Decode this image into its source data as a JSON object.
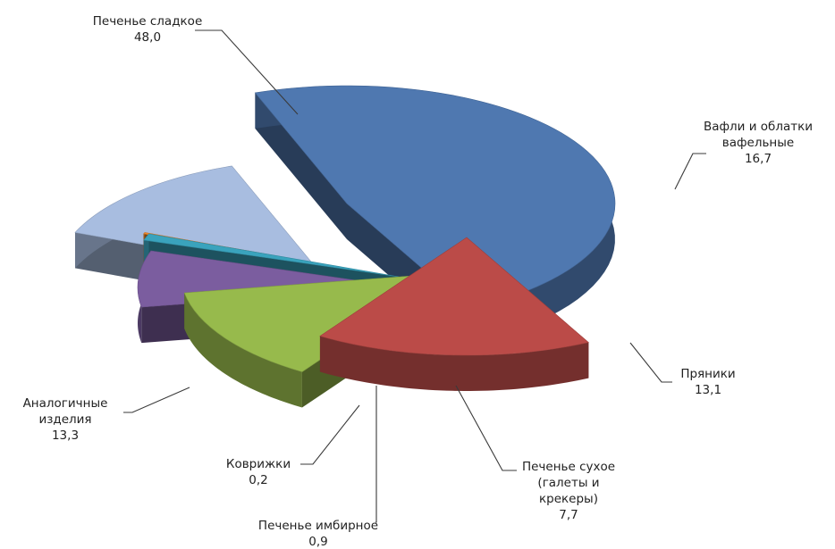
{
  "chart_data": {
    "type": "pie",
    "style": "3d-exploded",
    "title": "",
    "slices": [
      {
        "label": [
          "Печенье сладкое"
        ],
        "value_label": "48,0",
        "value": 48.0,
        "color": "#4f78b0"
      },
      {
        "label": [
          "Вафли и облатки",
          "вафельные"
        ],
        "value_label": "16,7",
        "value": 16.7,
        "color": "#bb4b48"
      },
      {
        "label": [
          "Пряники"
        ],
        "value_label": "13,1",
        "value": 13.1,
        "color": "#97ba4c"
      },
      {
        "label": [
          "Печенье сухое",
          "(галеты и",
          "крекеры)"
        ],
        "value_label": "7,7",
        "value": 7.7,
        "color": "#7b5d9f"
      },
      {
        "label": [
          "Печенье имбирное"
        ],
        "value_label": "0,9",
        "value": 0.9,
        "color": "#3aa3bd"
      },
      {
        "label": [
          "Коврижки"
        ],
        "value_label": "0,2",
        "value": 0.2,
        "color": "#f08a2c"
      },
      {
        "label": [
          "Аналогичные",
          "изделия"
        ],
        "value_label": "13,3",
        "value": 13.3,
        "color": "#a8bde0"
      }
    ]
  }
}
